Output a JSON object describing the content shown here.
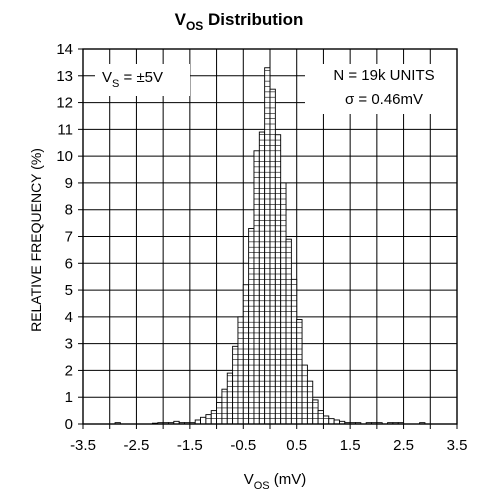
{
  "chart_data": {
    "type": "bar",
    "title": {
      "main": "V",
      "sub": "OS",
      "rest": " Distribution"
    },
    "xlabel": {
      "main": "V",
      "sub": "OS",
      "rest": " (mV)"
    },
    "ylabel": "RELATIVE FREQUENCY  (%)",
    "xlim": [
      -3.5,
      3.5
    ],
    "ylim": [
      0,
      14
    ],
    "x_ticks": [
      -3.5,
      -3.0,
      -2.5,
      -2.0,
      -1.5,
      -1.0,
      -0.5,
      0,
      0.5,
      1.0,
      1.5,
      2.0,
      2.5,
      3.0,
      3.5
    ],
    "x_tick_labels": [
      "-3.5",
      "-2.5",
      "-1.5",
      "-0.5",
      "0.5",
      "1.5",
      "2.5",
      "3.5"
    ],
    "x_tick_label_values": [
      -3.5,
      -2.5,
      -1.5,
      -0.5,
      0.5,
      1.5,
      2.5,
      3.5
    ],
    "y_ticks": [
      0,
      1,
      2,
      3,
      4,
      5,
      6,
      7,
      8,
      9,
      10,
      11,
      12,
      13,
      14
    ],
    "y_tick_labels": [
      "0",
      "1",
      "2",
      "3",
      "4",
      "5",
      "6",
      "7",
      "8",
      "9",
      "10",
      "11",
      "12",
      "13",
      "14"
    ],
    "grid": true,
    "bin_width": 0.1,
    "bins": [
      {
        "x": -2.85,
        "y": 0.05
      },
      {
        "x": -2.15,
        "y": 0.03
      },
      {
        "x": -2.05,
        "y": 0.05
      },
      {
        "x": -1.95,
        "y": 0.05
      },
      {
        "x": -1.85,
        "y": 0.05
      },
      {
        "x": -1.75,
        "y": 0.1
      },
      {
        "x": -1.65,
        "y": 0.05
      },
      {
        "x": -1.55,
        "y": 0.05
      },
      {
        "x": -1.45,
        "y": 0.05
      },
      {
        "x": -1.35,
        "y": 0.15
      },
      {
        "x": -1.25,
        "y": 0.25
      },
      {
        "x": -1.15,
        "y": 0.35
      },
      {
        "x": -1.05,
        "y": 0.5
      },
      {
        "x": -0.95,
        "y": 0.8
      },
      {
        "x": -0.85,
        "y": 1.3
      },
      {
        "x": -0.75,
        "y": 1.9
      },
      {
        "x": -0.65,
        "y": 2.9
      },
      {
        "x": -0.55,
        "y": 4.0
      },
      {
        "x": -0.45,
        "y": 5.2
      },
      {
        "x": -0.35,
        "y": 7.3
      },
      {
        "x": -0.25,
        "y": 10.2
      },
      {
        "x": -0.15,
        "y": 10.9
      },
      {
        "x": -0.05,
        "y": 13.3
      },
      {
        "x": 0.05,
        "y": 12.5
      },
      {
        "x": 0.15,
        "y": 10.8
      },
      {
        "x": 0.25,
        "y": 9.0
      },
      {
        "x": 0.35,
        "y": 6.9
      },
      {
        "x": 0.45,
        "y": 5.4
      },
      {
        "x": 0.55,
        "y": 3.9
      },
      {
        "x": 0.65,
        "y": 2.2
      },
      {
        "x": 0.75,
        "y": 1.6
      },
      {
        "x": 0.85,
        "y": 0.9
      },
      {
        "x": 0.95,
        "y": 0.5
      },
      {
        "x": 1.05,
        "y": 0.3
      },
      {
        "x": 1.15,
        "y": 0.2
      },
      {
        "x": 1.25,
        "y": 0.15
      },
      {
        "x": 1.35,
        "y": 0.1
      },
      {
        "x": 1.45,
        "y": 0.05
      },
      {
        "x": 1.55,
        "y": 0.05
      },
      {
        "x": 1.65,
        "y": 0.05
      },
      {
        "x": 1.85,
        "y": 0.05
      },
      {
        "x": 1.95,
        "y": 0.05
      },
      {
        "x": 2.05,
        "y": 0.05
      },
      {
        "x": 2.25,
        "y": 0.05
      },
      {
        "x": 2.35,
        "y": 0.05
      },
      {
        "x": 2.45,
        "y": 0.05
      },
      {
        "x": 2.85,
        "y": 0.05
      }
    ],
    "annotations": {
      "supply": {
        "main": "V",
        "sub": "S",
        "rest": " = ±5V"
      },
      "units": "N = 19k UNITS",
      "sigma": "σ = 0.46mV"
    },
    "colors": {
      "bars": "#ffffff",
      "stroke": "#000000",
      "grid": "#000000",
      "background": "#ffffff"
    }
  }
}
